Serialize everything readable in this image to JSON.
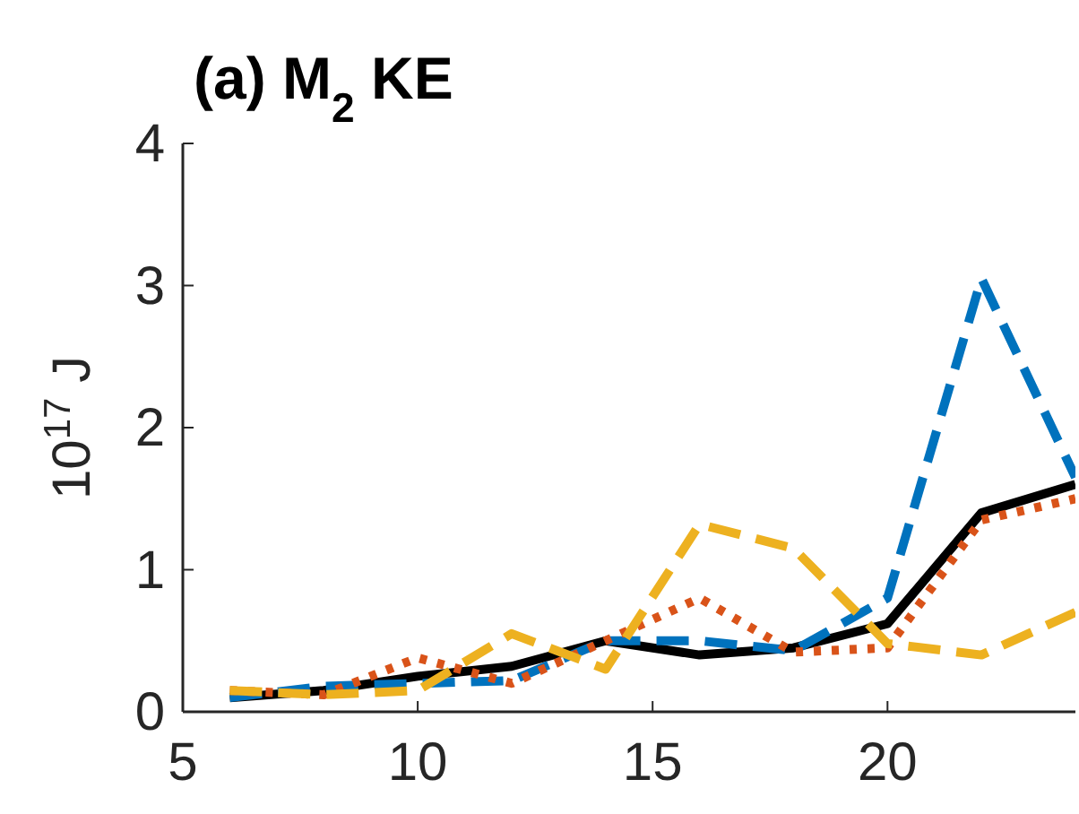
{
  "chart_data": {
    "type": "line",
    "title": "(a) M$_{2}$ KE",
    "ylabel": "10$^{17}$ J",
    "x": [
      6,
      8,
      10,
      12,
      14,
      16,
      18,
      20,
      22,
      24
    ],
    "series": [
      {
        "color": "#000000",
        "line_style": "solid",
        "values": [
          0.1,
          0.15,
          0.25,
          0.32,
          0.5,
          0.4,
          0.45,
          0.62,
          1.4,
          1.6
        ]
      },
      {
        "color": "#0072bd",
        "line_style": "dashed",
        "values": [
          0.1,
          0.18,
          0.2,
          0.22,
          0.5,
          0.5,
          0.43,
          0.8,
          3.05,
          1.65
        ]
      },
      {
        "color": "#d95319",
        "line_style": "dotted",
        "values": [
          0.15,
          0.12,
          0.38,
          0.2,
          0.5,
          0.8,
          0.42,
          0.45,
          1.35,
          1.5
        ]
      },
      {
        "color": "#edb120",
        "line_style": "dashed",
        "values": [
          0.15,
          0.12,
          0.15,
          0.55,
          0.3,
          1.32,
          1.15,
          0.48,
          0.4,
          0.7
        ]
      }
    ],
    "xlim": [
      5,
      24
    ],
    "xticks": [
      5,
      10,
      15,
      20
    ],
    "ylim": [
      0,
      4
    ],
    "yticks": [
      0,
      1,
      2,
      3,
      4
    ],
    "grid": false
  }
}
